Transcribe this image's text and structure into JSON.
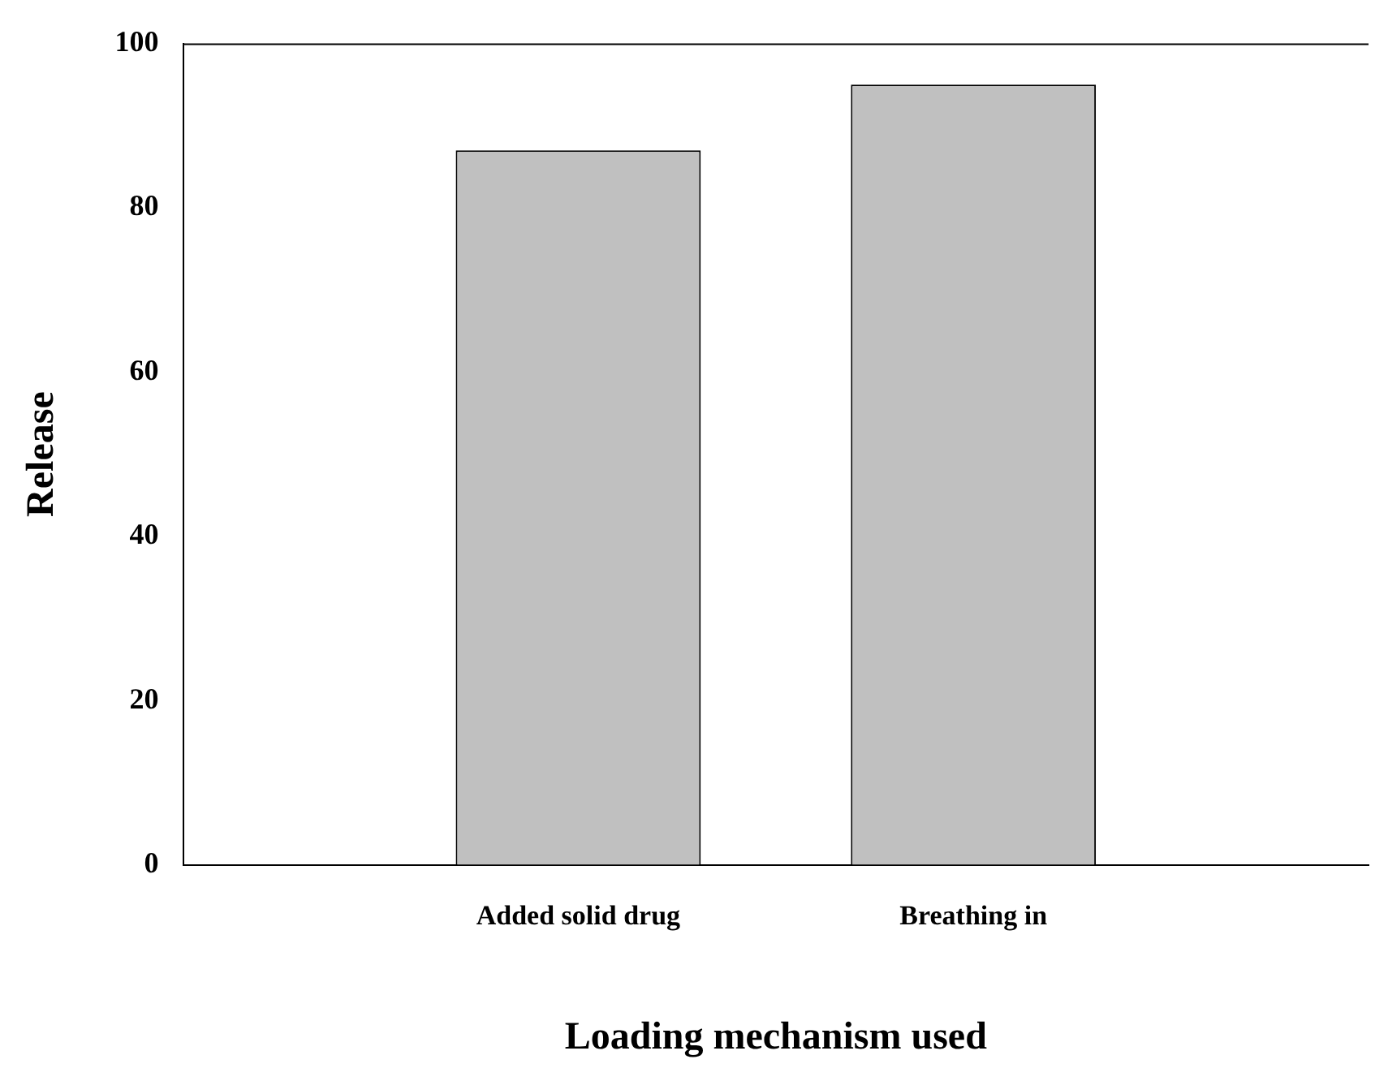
{
  "chart_data": {
    "type": "bar",
    "xlabel": "Loading mechanism used",
    "ylabel": "Release",
    "categories": [
      "Added solid drug",
      "Breathing in"
    ],
    "values": [
      87,
      95
    ],
    "color": "#c0c0c0",
    "ylim": [
      0,
      100
    ],
    "yticks": [
      0,
      20,
      40,
      60,
      80,
      100
    ],
    "grid": false,
    "legend": false
  }
}
